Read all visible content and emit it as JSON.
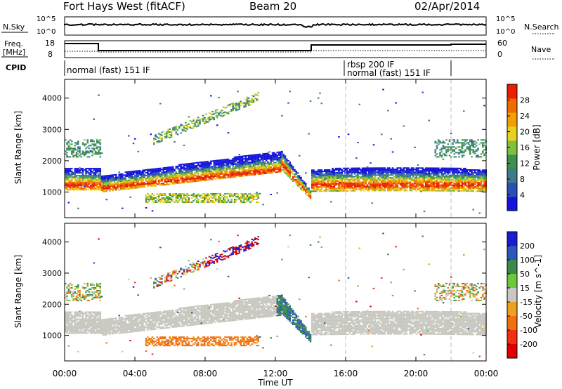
{
  "header": {
    "station": "Fort Hays West (fitACF)",
    "beam": "Beam 20",
    "date": "02/Apr/2014"
  },
  "noise_panel": {
    "left_label": "N.Sky",
    "right_label": "N.Search",
    "left_ticks": [
      "10^5",
      "10^0"
    ],
    "right_ticks": [
      "10^5",
      "10^0"
    ]
  },
  "freq_panel": {
    "left_label_1": "Freq.",
    "left_label_2": "[MHz]",
    "left_ticks": [
      "18",
      "8"
    ],
    "right_label": "Nave",
    "right_ticks": [
      "60",
      "0"
    ]
  },
  "cpid": {
    "label": "CPID",
    "segments": [
      "normal (fast) 151 IF",
      "rbsp 200 IF",
      "normal (fast) 151 IF"
    ]
  },
  "x_axis": {
    "label": "Time UT",
    "ticks": [
      "00:00",
      "04:00",
      "08:00",
      "12:00",
      "16:00",
      "20:00",
      "00:00"
    ]
  },
  "colors": {
    "power_scale": [
      "#1414dc",
      "#2a50b4",
      "#3c7a8c",
      "#3c9050",
      "#7fc03c",
      "#e8d020",
      "#f0a000",
      "#f06a00",
      "#e82000"
    ],
    "velocity_scale": [
      "#1a1ad0",
      "#2e56b8",
      "#3a8a50",
      "#6cc83c",
      "#c8c8c0",
      "#f0a020",
      "#f07010",
      "#f03010",
      "#e00000"
    ]
  },
  "chart_data": [
    {
      "type": "heatmap",
      "panel": "power",
      "xlabel": "",
      "ylabel": "Slant Range [km]",
      "x_range_hours": [
        0,
        24
      ],
      "ylim_km": [
        180,
        4600
      ],
      "yticks": [
        "4000",
        "3000",
        "2000",
        "1000"
      ],
      "colorbar": {
        "label": "Power [dB]",
        "ticks": [
          "28",
          "24",
          "20",
          "16",
          "12",
          "8",
          "4"
        ],
        "range": [
          0,
          30
        ]
      },
      "features": [
        {
          "t_start": 0.0,
          "t_end": 2.0,
          "range_km": [
            1050,
            1700
          ],
          "value": "high"
        },
        {
          "t_start": 2.0,
          "t_end": 12.4,
          "range_km": [
            1000,
            2300
          ],
          "value": "rising band"
        },
        {
          "t_start": 4.5,
          "t_end": 11.0,
          "range_km": [
            650,
            950
          ],
          "value": "low"
        },
        {
          "t_start": 12.0,
          "t_end": 14.0,
          "range_km": [
            750,
            2300
          ],
          "value": "descending"
        },
        {
          "t_start": 14.0,
          "t_end": 24.0,
          "range_km": [
            1000,
            1700
          ],
          "value": "high"
        }
      ]
    },
    {
      "type": "heatmap",
      "panel": "velocity",
      "xlabel": "Time UT",
      "ylabel": "Slant Range [km]",
      "x_range_hours": [
        0,
        24
      ],
      "ylim_km": [
        180,
        4600
      ],
      "yticks": [
        "4000",
        "3000",
        "2000",
        "1000"
      ],
      "colorbar": {
        "label": "Velocity [m s^-1]",
        "ticks": [
          "200",
          "100",
          "50",
          "15",
          "-15",
          "-50",
          "-100",
          "-200"
        ],
        "range": [
          -250,
          250
        ]
      },
      "features": [
        {
          "t_start": 0.0,
          "t_end": 14.0,
          "range_km": [
            900,
            1700
          ],
          "value": "ground scatter"
        },
        {
          "t_start": 12.0,
          "t_end": 14.0,
          "range_km": [
            800,
            2300
          ],
          "value": "positive (green)"
        },
        {
          "t_start": 8.0,
          "t_end": 11.0,
          "range_km": [
            2900,
            4000
          ],
          "value": "mixed red/blue"
        },
        {
          "t_start": 14.0,
          "t_end": 24.0,
          "range_km": [
            1000,
            1700
          ],
          "value": "ground scatter"
        }
      ]
    }
  ]
}
